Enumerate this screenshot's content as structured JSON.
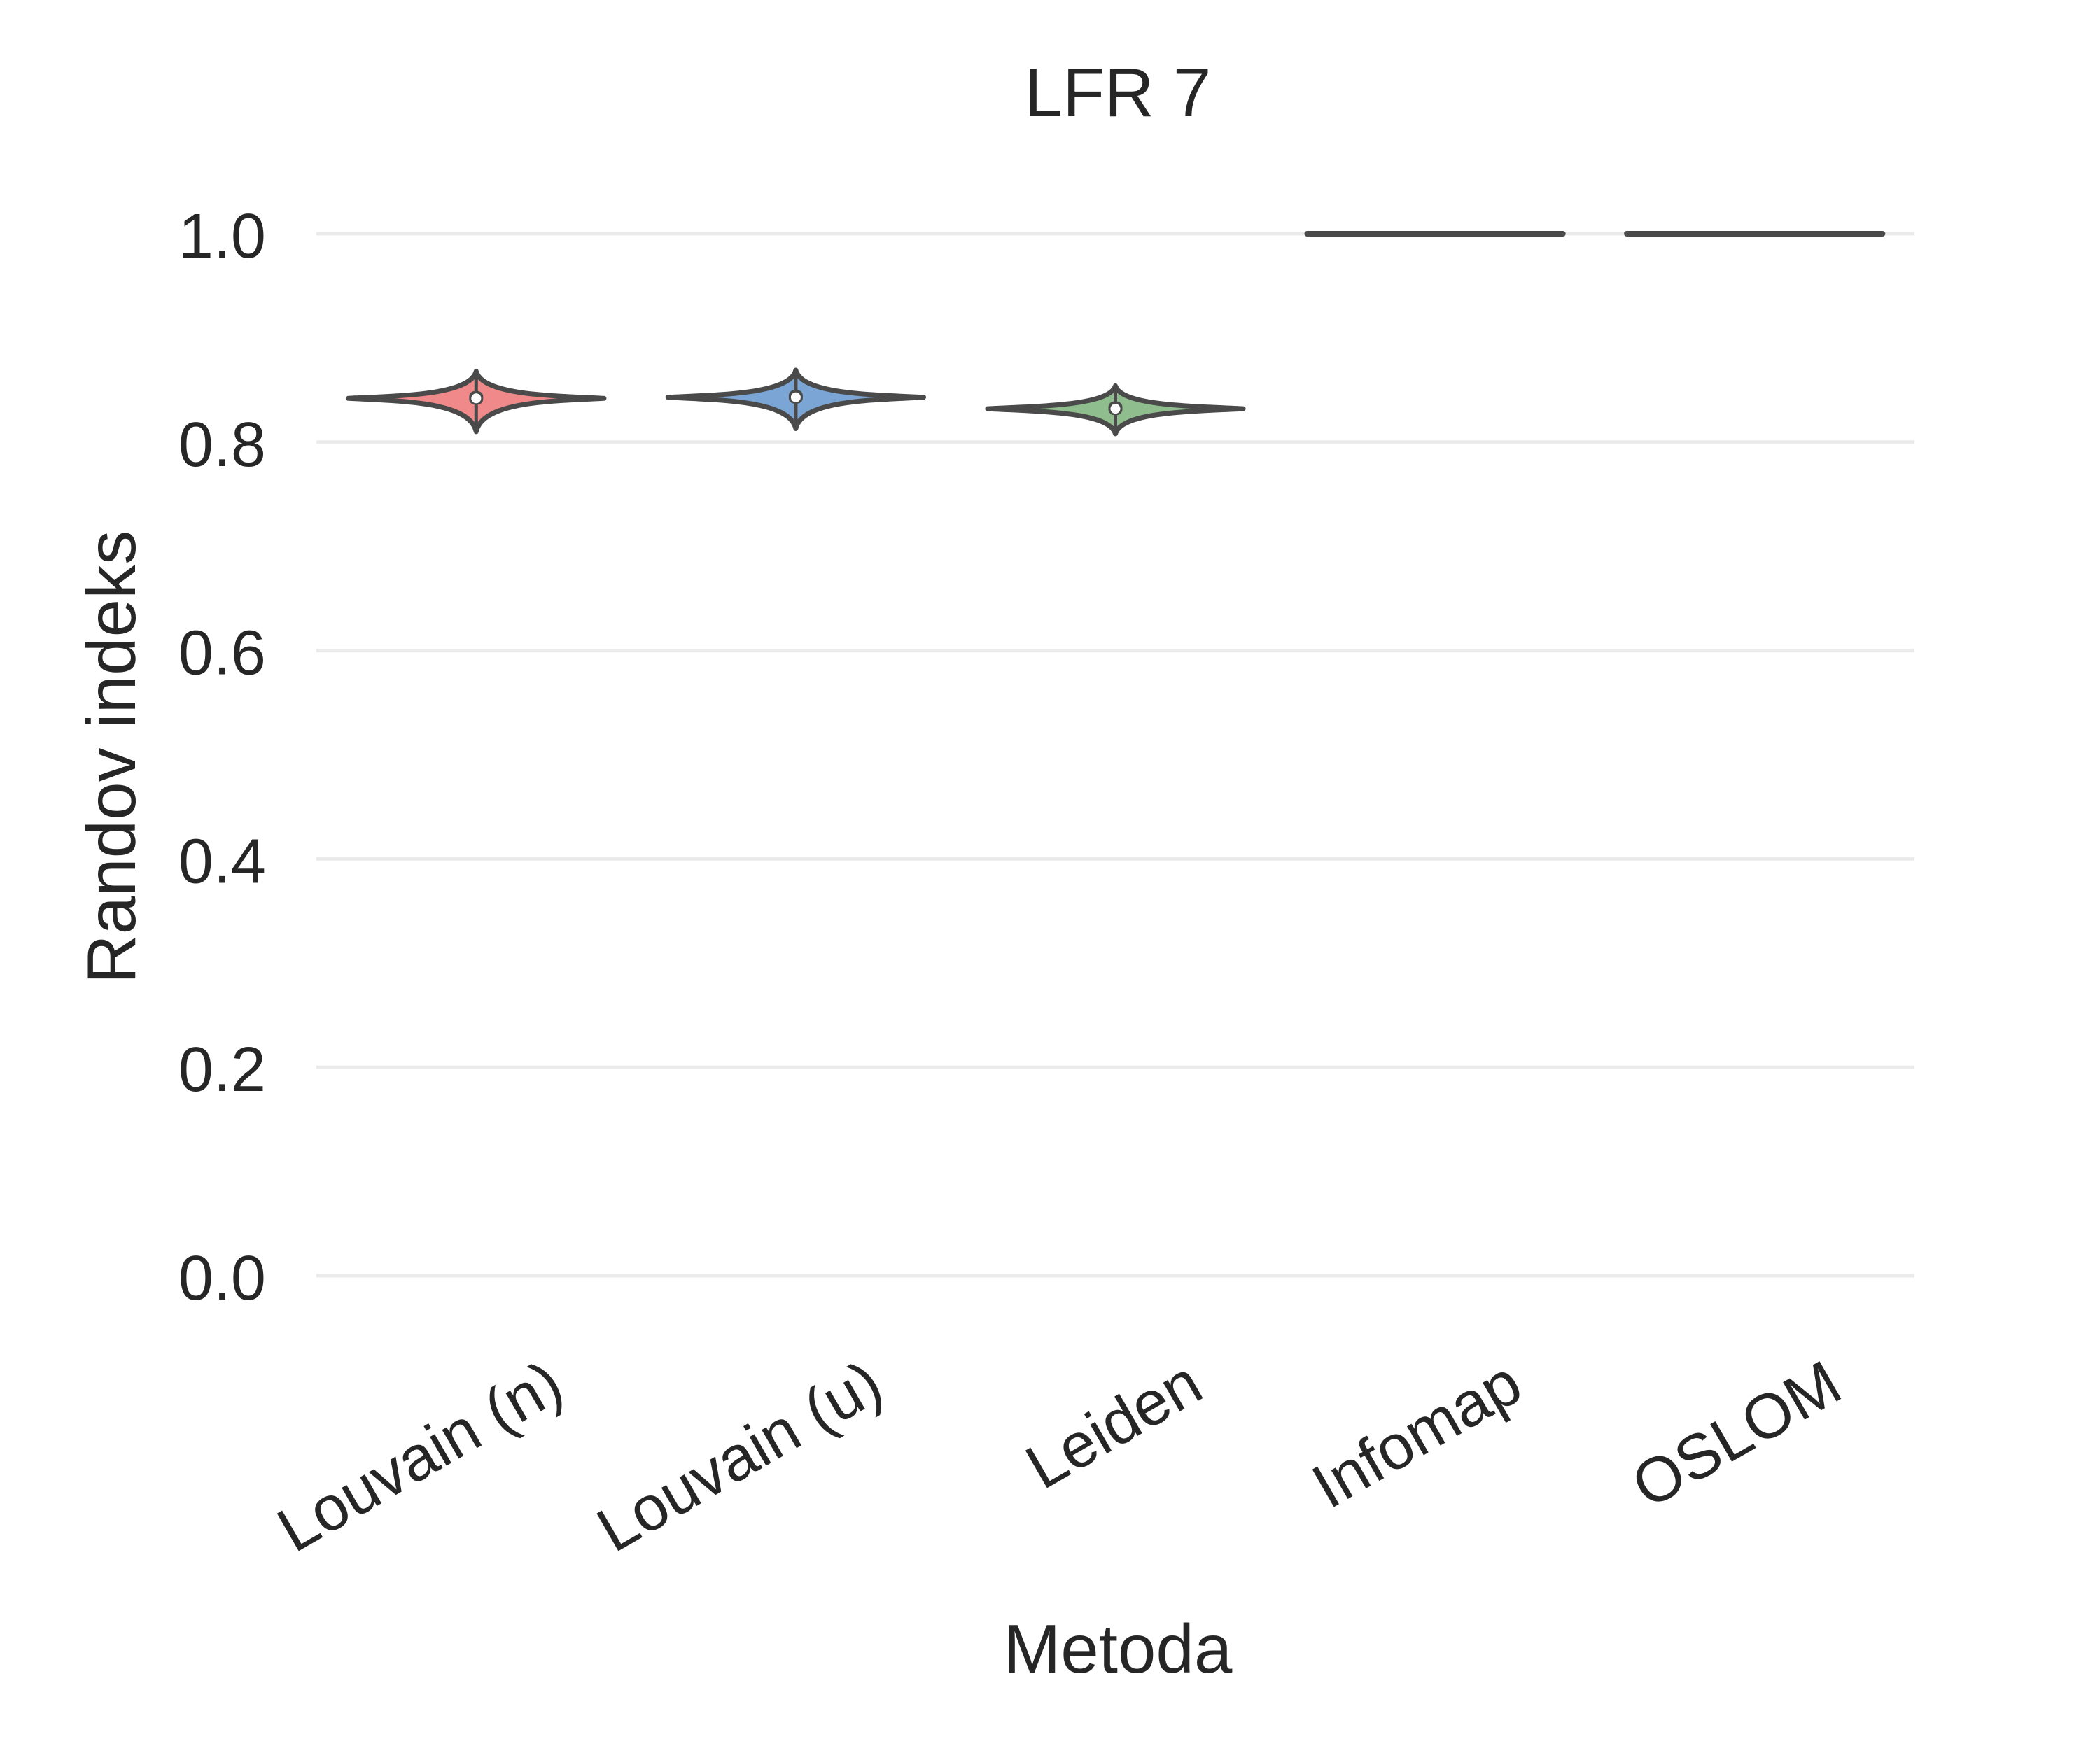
{
  "chart_data": {
    "type": "violin",
    "title": "LFR 7",
    "xlabel": "Metoda",
    "ylabel": "Randov indeks",
    "categories": [
      "Louvain (n)",
      "Louvain (u)",
      "Leiden",
      "Infomap",
      "OSLOM"
    ],
    "ylim": [
      -0.08,
      1.1
    ],
    "yticks": [
      0.0,
      0.2,
      0.4,
      0.6,
      0.8,
      1.0
    ],
    "ytick_labels": [
      "0.0",
      "0.2",
      "0.4",
      "0.6",
      "0.8",
      "1.0"
    ],
    "grid": "horizontal",
    "series": [
      {
        "category": "Louvain (n)",
        "color": "#f08a8a",
        "median": 0.842,
        "q1": 0.836,
        "q3": 0.849,
        "min": 0.81,
        "max": 0.868,
        "peak": 0.842
      },
      {
        "category": "Louvain (u)",
        "color": "#7aa5d4",
        "median": 0.843,
        "q1": 0.837,
        "q3": 0.85,
        "min": 0.813,
        "max": 0.869,
        "peak": 0.843
      },
      {
        "category": "Leiden",
        "color": "#8fbd8d",
        "median": 0.832,
        "q1": 0.826,
        "q3": 0.839,
        "min": 0.808,
        "max": 0.854,
        "peak": 0.832
      },
      {
        "category": "Infomap",
        "color": "#555555",
        "median": 1.0,
        "q1": 1.0,
        "q3": 1.0,
        "min": 1.0,
        "max": 1.0,
        "peak": 1.0
      },
      {
        "category": "OSLOM",
        "color": "#555555",
        "median": 1.0,
        "q1": 1.0,
        "q3": 1.0,
        "min": 1.0,
        "max": 1.0,
        "peak": 1.0
      }
    ]
  }
}
